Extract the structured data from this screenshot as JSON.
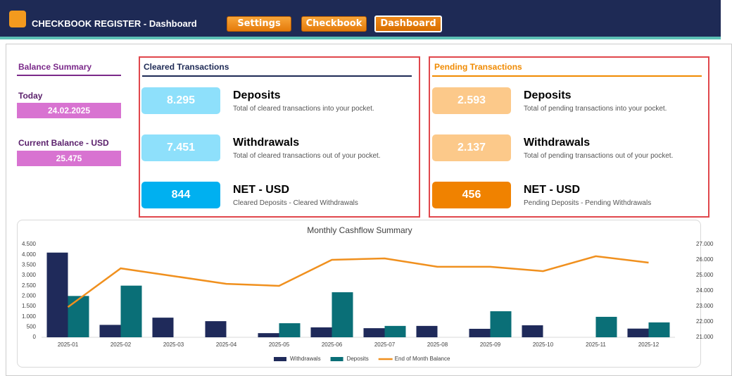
{
  "header": {
    "title": "CHECKBOOK REGISTER - Dashboard",
    "buttons": [
      "Settings",
      "Checkbook",
      "Dashboard"
    ]
  },
  "balance_summary": {
    "title": "Balance Summary",
    "today_label": "Today",
    "today": "24.02.2025",
    "balance_label": "Current Balance - USD",
    "balance": "25.475"
  },
  "cleared": {
    "title": "Cleared Transactions",
    "cards": [
      {
        "value": "8.295",
        "label": "Deposits",
        "description": "Total of cleared transactions into your pocket."
      },
      {
        "value": "7.451",
        "label": "Withdrawals",
        "description": "Total of cleared transactions out of your pocket."
      },
      {
        "value": "844",
        "label": "NET - USD",
        "description": "Cleared Deposits - Cleared Withdrawals"
      }
    ]
  },
  "pending": {
    "title": "Pending Transactions",
    "cards": [
      {
        "value": "2.593",
        "label": "Deposits",
        "description": "Total of pending transactions into your pocket."
      },
      {
        "value": "2.137",
        "label": "Withdrawals",
        "description": "Total of pending transactions out of your pocket."
      },
      {
        "value": "456",
        "label": "NET - USD",
        "description": "Pending Deposits - Pending Withdrawals"
      }
    ]
  },
  "chart_data": {
    "type": "bar",
    "title": "Monthly Cashflow Summary",
    "categories": [
      "2025-01",
      "2025-02",
      "2025-03",
      "2025-04",
      "2025-05",
      "2025-06",
      "2025-07",
      "2025-08",
      "2025-09",
      "2025-10",
      "2025-11",
      "2025-12"
    ],
    "series": [
      {
        "name": "Withdrawals",
        "type": "bar",
        "color": "#1f2a5a",
        "values": [
          4100,
          600,
          950,
          780,
          200,
          480,
          440,
          550,
          410,
          580,
          0,
          420
        ]
      },
      {
        "name": "Deposits",
        "type": "bar",
        "color": "#0a6f77",
        "values": [
          2000,
          2500,
          0,
          0,
          680,
          2180,
          550,
          0,
          1260,
          0,
          990,
          720
        ]
      },
      {
        "name": "End of Month Balance",
        "type": "line",
        "axis": "y2",
        "color": "#f0901e",
        "values": [
          22950,
          25450,
          24950,
          24450,
          24320,
          26000,
          26090,
          25550,
          25550,
          25270,
          26230,
          25820
        ]
      }
    ],
    "ylim": [
      0,
      4500
    ],
    "yticks": [
      0,
      500,
      {
        "value": 1000,
        "label": "1.000"
      },
      {
        "value": 1500,
        "label": "1.500"
      },
      {
        "value": 2000,
        "label": "2.000"
      },
      {
        "value": 2500,
        "label": "2.500"
      },
      {
        "value": 3000,
        "label": "3.000"
      },
      {
        "value": 3500,
        "label": "3.500"
      },
      {
        "value": 4000,
        "label": "4.000"
      },
      {
        "value": 4500,
        "label": "4.500"
      }
    ],
    "y2lim": [
      21000,
      27000
    ],
    "y2ticks": [
      {
        "value": 21000,
        "label": "21.000"
      },
      {
        "value": 22000,
        "label": "22.000"
      },
      {
        "value": 23000,
        "label": "23.000"
      },
      {
        "value": 24000,
        "label": "24.000"
      },
      {
        "value": 25000,
        "label": "25.000"
      },
      {
        "value": 26000,
        "label": "26.000"
      },
      {
        "value": 27000,
        "label": "27.000"
      }
    ],
    "grid": false,
    "legend": "bottom"
  }
}
